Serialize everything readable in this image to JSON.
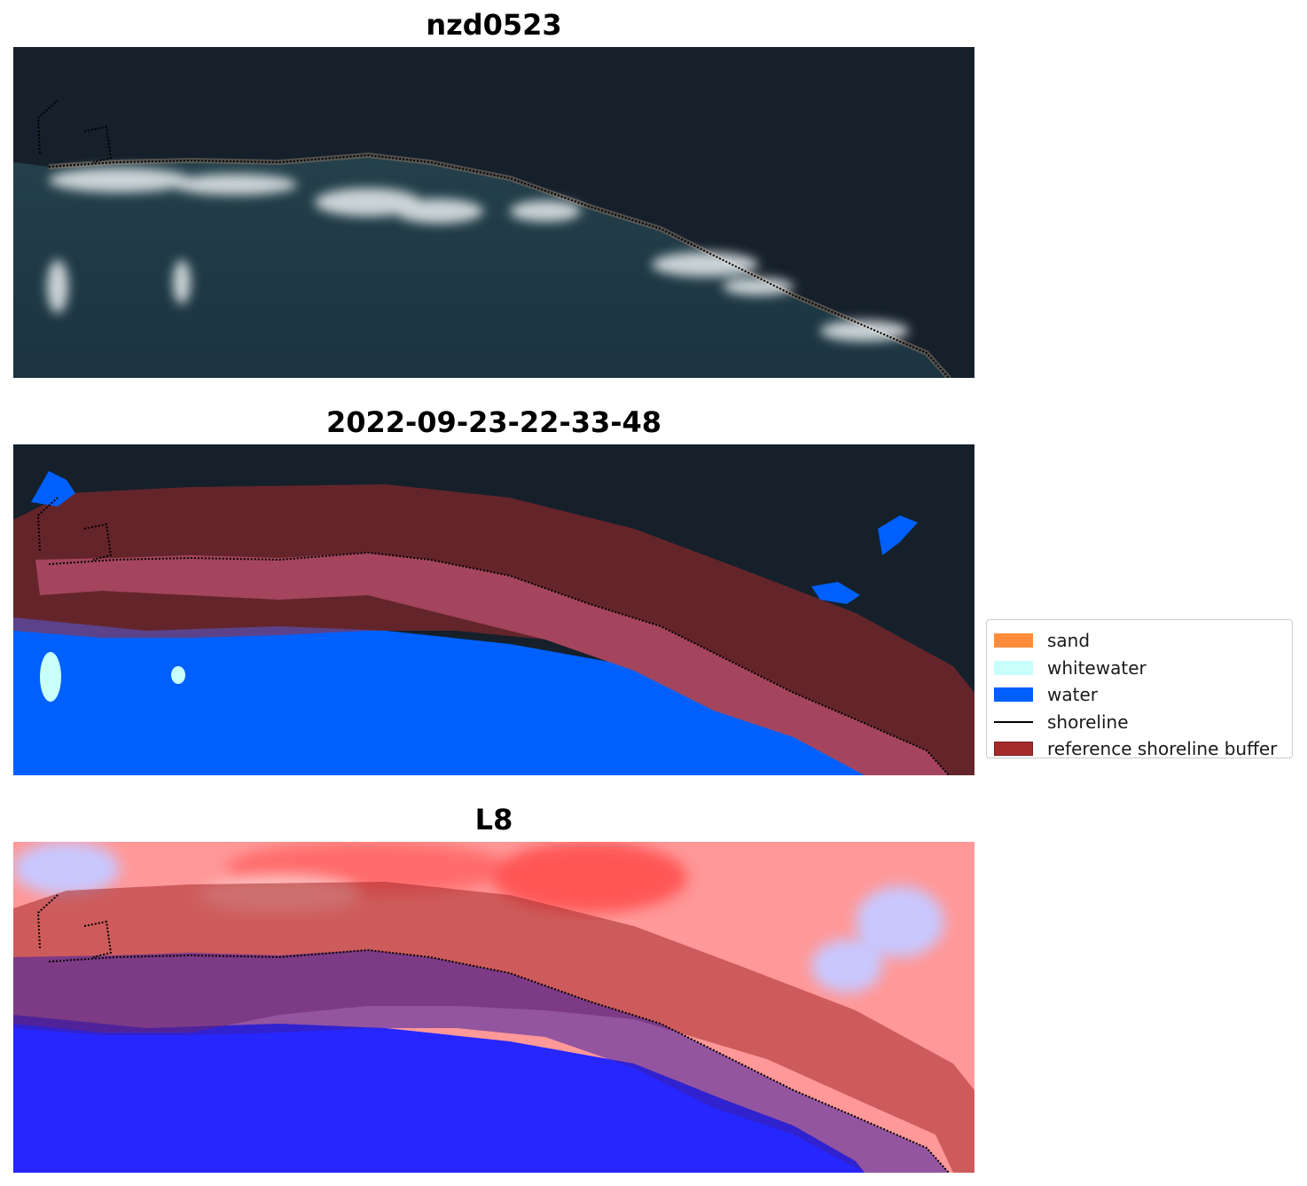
{
  "panels": [
    {
      "title": "nzd0523"
    },
    {
      "title": "2022-09-23-22-33-48"
    },
    {
      "title": "L8"
    }
  ],
  "legend": {
    "items": [
      {
        "label": "sand",
        "color": "#ff8c3a",
        "kind": "patch"
      },
      {
        "label": "whitewater",
        "color": "#c8fffa",
        "kind": "patch"
      },
      {
        "label": "water",
        "color": "#0060ff",
        "kind": "patch"
      },
      {
        "label": "shoreline",
        "color": "#000000",
        "kind": "line"
      },
      {
        "label": "reference shoreline buffer",
        "color": "#a52a2a",
        "kind": "patch"
      }
    ]
  },
  "colors": {
    "land_dark": "#15202b",
    "sea_dark": "#1f3d48",
    "buffer": "#a52a2a",
    "water_class": "#0060ff",
    "index_positive": "#ff2020",
    "index_negative": "#2020ff"
  }
}
